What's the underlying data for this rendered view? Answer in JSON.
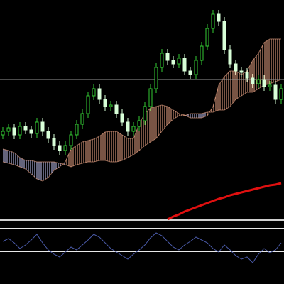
{
  "chart_data": [
    {
      "type": "candlestick",
      "ylim": [
        0,
        310
      ],
      "up_color": "#33cc33",
      "down_color": "#d8ffd8",
      "open": [
        120,
        125,
        130,
        120,
        132,
        127,
        122,
        138,
        125,
        115,
        105,
        98,
        105,
        120,
        135,
        150,
        175,
        185,
        170,
        160,
        162,
        150,
        138,
        125,
        132,
        140,
        160,
        185,
        215,
        235,
        225,
        220,
        228,
        210,
        205,
        225,
        245,
        270,
        290,
        280,
        240,
        220,
        210,
        208,
        200,
        192,
        198,
        188,
        190,
        170
      ],
      "high": [
        131,
        136,
        136,
        138,
        138,
        133,
        144,
        144,
        131,
        121,
        111,
        111,
        126,
        141,
        156,
        181,
        191,
        191,
        176,
        168,
        168,
        156,
        144,
        138,
        146,
        166,
        191,
        221,
        241,
        241,
        231,
        234,
        234,
        216,
        231,
        251,
        276,
        296,
        296,
        286,
        246,
        226,
        216,
        214,
        206,
        204,
        204,
        196,
        196,
        191
      ],
      "low": [
        114,
        119,
        114,
        114,
        121,
        116,
        116,
        119,
        109,
        99,
        92,
        92,
        99,
        114,
        129,
        144,
        169,
        164,
        154,
        154,
        144,
        132,
        119,
        119,
        126,
        134,
        154,
        179,
        209,
        219,
        214,
        214,
        204,
        199,
        199,
        219,
        239,
        264,
        274,
        234,
        214,
        204,
        202,
        194,
        186,
        186,
        182,
        182,
        164,
        164
      ],
      "close": [
        125,
        130,
        120,
        132,
        127,
        122,
        138,
        125,
        115,
        105,
        98,
        105,
        120,
        135,
        150,
        175,
        185,
        170,
        160,
        162,
        150,
        138,
        125,
        132,
        140,
        160,
        185,
        215,
        235,
        225,
        220,
        228,
        210,
        205,
        225,
        245,
        270,
        290,
        280,
        240,
        220,
        210,
        208,
        200,
        192,
        198,
        188,
        190,
        170,
        185
      ],
      "cloud": {
        "bull_color": "#f0a888",
        "bear_color": "#c8c8f8",
        "span_a": [
          82,
          80,
          78,
          75,
          72,
          65,
          58,
          55,
          60,
          70,
          75,
          82,
          100,
          105,
          110,
          112,
          114,
          118,
          124,
          125,
          125,
          120,
          115,
          115,
          135,
          150,
          158,
          160,
          162,
          160,
          155,
          150,
          148,
          144,
          144,
          144,
          147,
          160,
          190,
          202,
          210,
          210,
          205,
          210,
          225,
          235,
          250,
          255,
          255,
          255
        ],
        "span_b": [
          100,
          98,
          95,
          88,
          84,
          84,
          82,
          82,
          82,
          82,
          80,
          78,
          75,
          78,
          80,
          82,
          82,
          84,
          84,
          82,
          82,
          84,
          88,
          92,
          98,
          105,
          110,
          115,
          125,
          135,
          142,
          147,
          147,
          150,
          150,
          150,
          152,
          152,
          155,
          155,
          160,
          170,
          175,
          180,
          180,
          185,
          190,
          192,
          195,
          198
        ]
      },
      "ma": {
        "color": "#e01010",
        "values": [
          null,
          null,
          null,
          null,
          null,
          null,
          null,
          null,
          null,
          null,
          null,
          null,
          null,
          null,
          null,
          null,
          null,
          null,
          null,
          null,
          null,
          null,
          null,
          null,
          null,
          null,
          null,
          null,
          null,
          1,
          5,
          8,
          12,
          15,
          18,
          21,
          24,
          27,
          30,
          32,
          35,
          37,
          39,
          41,
          43,
          45,
          47,
          49,
          50,
          52
        ]
      },
      "levels": [
        198
      ],
      "level_color": "#999999"
    },
    {
      "type": "line",
      "ylim": [
        0,
        88
      ],
      "color": "#4a5aa8",
      "values": [
        60,
        64,
        58,
        50,
        55,
        62,
        70,
        58,
        48,
        42,
        38,
        45,
        52,
        48,
        55,
        62,
        70,
        66,
        58,
        50,
        45,
        40,
        35,
        42,
        48,
        55,
        65,
        72,
        68,
        60,
        52,
        48,
        55,
        60,
        66,
        62,
        58,
        50,
        45,
        55,
        48,
        40,
        35,
        38,
        30,
        42,
        50,
        44,
        48,
        58
      ],
      "levels": [
        78,
        46
      ],
      "level_color": "#e8e8e8"
    }
  ]
}
